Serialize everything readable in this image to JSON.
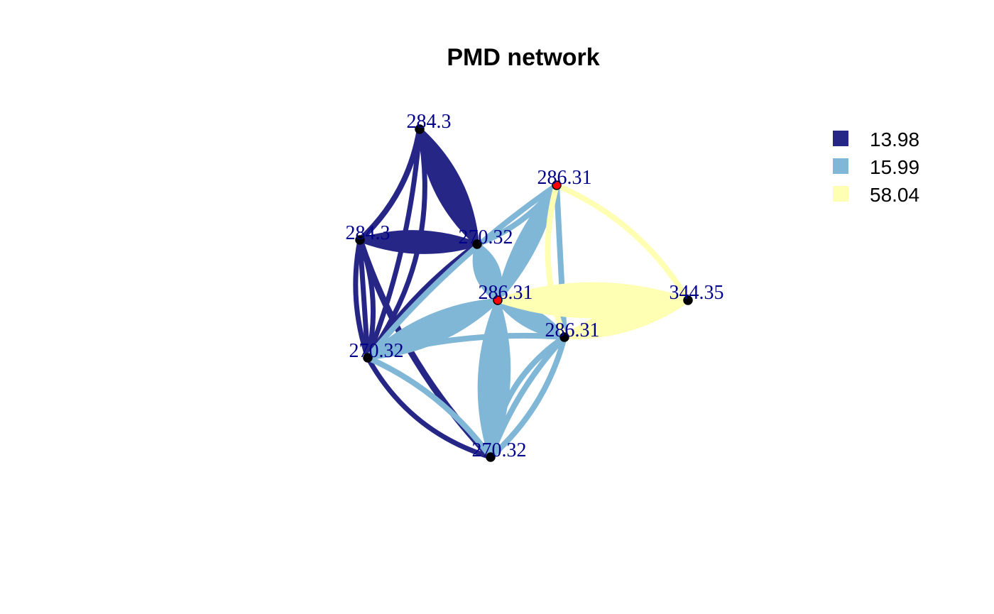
{
  "title": "PMD network",
  "colors": {
    "c1": "#262686",
    "c2": "#80B6D6",
    "c3": "#FFFFB4",
    "node_default": "#000000",
    "node_highlight": "#FF0000",
    "label": "#00008B"
  },
  "legend": {
    "items": [
      {
        "label": "13.98",
        "color": "#262686"
      },
      {
        "label": "15.99",
        "color": "#80B6D6"
      },
      {
        "label": "58.04",
        "color": "#FFFFB4"
      }
    ]
  },
  "nodes": [
    {
      "id": "n1",
      "label": "284.3",
      "highlight": false
    },
    {
      "id": "n2",
      "label": "284.3",
      "highlight": false
    },
    {
      "id": "n3",
      "label": "270.32",
      "highlight": false
    },
    {
      "id": "n4",
      "label": "286.31",
      "highlight": true
    },
    {
      "id": "n5",
      "label": "286.31",
      "highlight": true
    },
    {
      "id": "n6",
      "label": "344.35",
      "highlight": false
    },
    {
      "id": "n7",
      "label": "286.31",
      "highlight": false
    },
    {
      "id": "n8",
      "label": "270.32",
      "highlight": false
    },
    {
      "id": "n9",
      "label": "270.32",
      "highlight": false
    }
  ]
}
